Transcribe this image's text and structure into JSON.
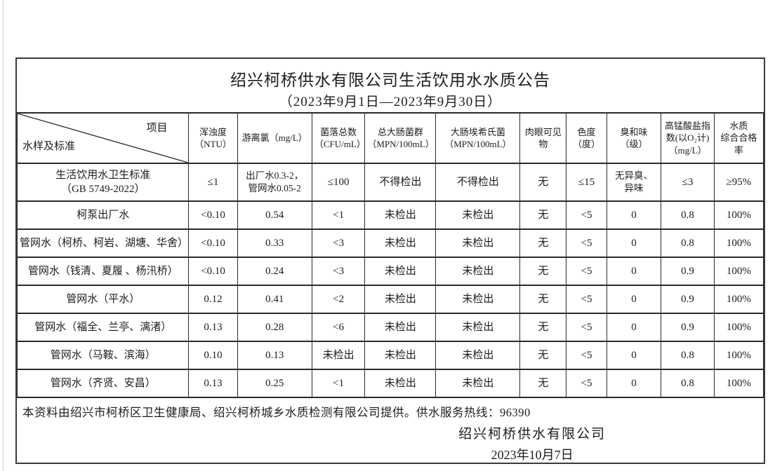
{
  "page": {
    "title": "绍兴柯桥供水有限公司生活饮用水水质公告",
    "subtitle": "（2023年9月1日—2023年9月30日）"
  },
  "table": {
    "corner": {
      "top_right": "项目",
      "bottom_left": "水样及标准"
    },
    "columns": [
      "浑浊度\n（NTU）",
      "游离氯（mg/L）",
      "菌落总数\n（CFU/mL）",
      "总大肠菌群\n（MPN/100mL）",
      "大肠埃希氏菌\n（MPN/100mL）",
      "肉眼可见物",
      "色度\n（度）",
      "臭和味\n（级）",
      "高锰酸盐指数(以O₂计)（mg/L）",
      "水质\n综合合格率"
    ],
    "rows": [
      {
        "label": "生活饮用水卫生标准\n（GB 5749-2022）",
        "cells": [
          "≤1",
          "出厂水0.3-2，\n管网水0.05-2",
          "≤100",
          "不得检出",
          "不得检出",
          "无",
          "≤15",
          "无异臭、\n异味",
          "≤3",
          "≥95%"
        ]
      },
      {
        "label": "柯泵出厂水",
        "cells": [
          "<0.10",
          "0.54",
          "<1",
          "未检出",
          "未检出",
          "无",
          "<5",
          "0",
          "0.8",
          "100%"
        ]
      },
      {
        "label": "管网水（柯桥、柯岩、湖塘、华舍）",
        "cells": [
          "<0.10",
          "0.33",
          "<3",
          "未检出",
          "未检出",
          "无",
          "<5",
          "0",
          "0.8",
          "100%"
        ]
      },
      {
        "label": "管网水（钱清、夏履 、杨汛桥）",
        "cells": [
          "<0.10",
          "0.24",
          "<3",
          "未检出",
          "未检出",
          "无",
          "<5",
          "0",
          "0.9",
          "100%"
        ]
      },
      {
        "label": "管网水（平水）",
        "cells": [
          "0.12",
          "0.41",
          "<2",
          "未检出",
          "未检出",
          "无",
          "<5",
          "0",
          "0.9",
          "100%"
        ]
      },
      {
        "label": "管网水（福全、兰亭、漓渚）",
        "cells": [
          "0.13",
          "0.28",
          "<6",
          "未检出",
          "未检出",
          "无",
          "<5",
          "0",
          "0.9",
          "100%"
        ]
      },
      {
        "label": "管网水（马鞍、滨海）",
        "cells": [
          "0.10",
          "0.13",
          "未检出",
          "未检出",
          "未检出",
          "无",
          "<5",
          "0",
          "0.8",
          "100%"
        ]
      },
      {
        "label": "管网水（齐贤、安昌）",
        "cells": [
          "0.13",
          "0.25",
          "<1",
          "未检出",
          "未检出",
          "无",
          "<5",
          "0",
          "0.8",
          "100%"
        ]
      }
    ]
  },
  "footer": {
    "note": "本资料由绍兴市柯桥区卫生健康局、绍兴柯桥城乡水质检测有限公司提供。供水服务热线：96390",
    "company": "绍兴柯桥供水有限公司",
    "date": "2023年10月7日"
  }
}
